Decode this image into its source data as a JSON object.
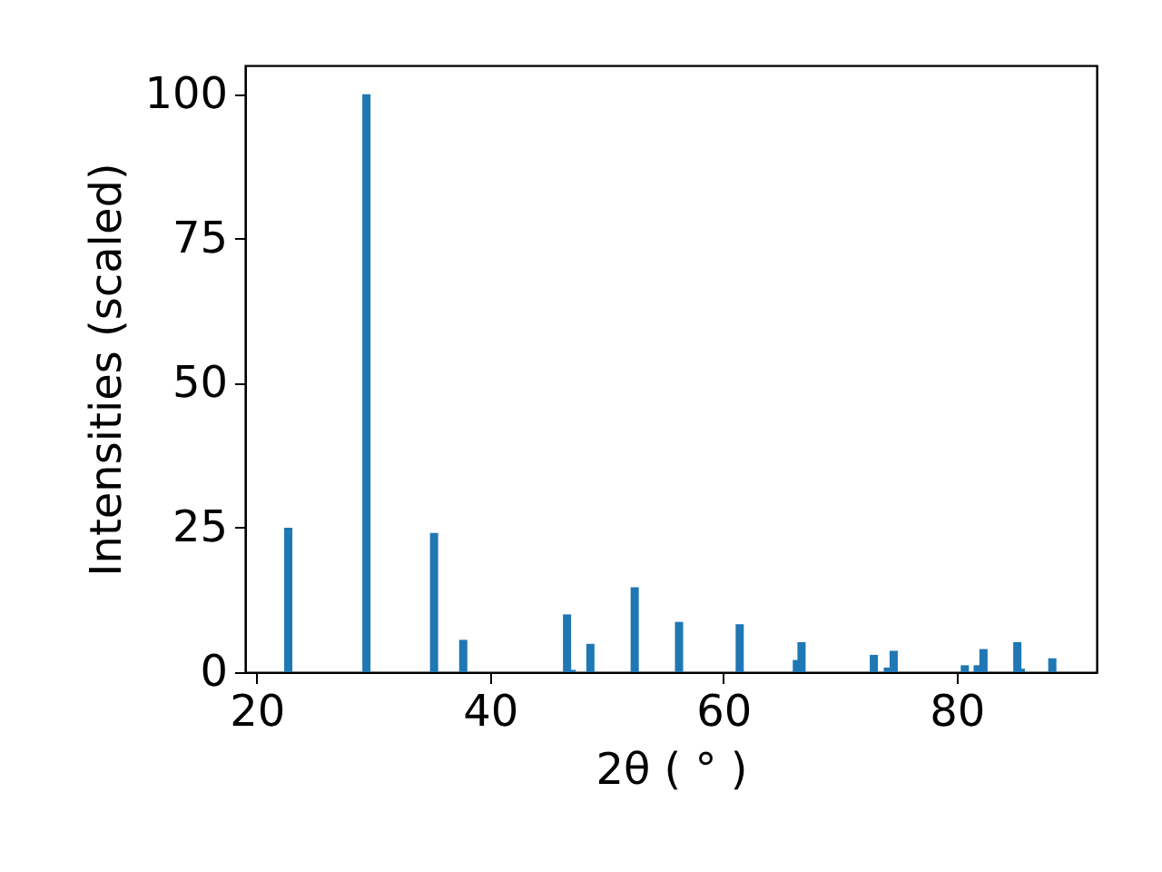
{
  "chart_data": {
    "type": "bar",
    "x": [
      22.7,
      29.4,
      35.2,
      37.7,
      46.6,
      47.0,
      48.6,
      52.4,
      56.2,
      61.4,
      66.3,
      66.7,
      72.9,
      74.1,
      74.6,
      80.7,
      81.8,
      82.3,
      85.2,
      85.5,
      88.2
    ],
    "values": [
      25.0,
      100,
      24.1,
      5.6,
      10.0,
      0.4,
      4.9,
      14.7,
      8.7,
      8.3,
      2.1,
      5.2,
      3.0,
      0.8,
      3.7,
      1.2,
      1.2,
      4.0,
      5.2,
      0.6,
      2.4
    ],
    "color": "#1f77b4",
    "xlabel": "2θ ( ° )",
    "ylabel": "Intensities (scaled)",
    "xlim": [
      19,
      92
    ],
    "ylim": [
      0,
      105
    ],
    "xticks": [
      20,
      40,
      60,
      80
    ],
    "yticks": [
      0,
      25,
      50,
      75,
      100
    ],
    "grid": false
  }
}
